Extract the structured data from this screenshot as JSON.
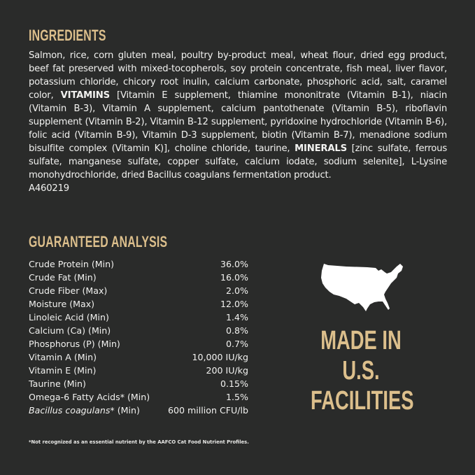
{
  "ingredients": {
    "title": "INGREDIENTS",
    "parts": [
      {
        "text": "Salmon, rice, corn gluten meal, poultry by-product meal, wheat flour, dried egg product, beef fat preserved with mixed-tocopherols, soy protein concentrate, fish meal, liver flavor, potassium chloride, chicory root inulin, calcium carbonate, phosphoric acid, salt, caramel color, ",
        "bold": false
      },
      {
        "text": "VITAMINS",
        "bold": true
      },
      {
        "text": " [Vitamin E supplement, thiamine mononitrate (Vitamin B-1), niacin (Vitamin B-3), Vitamin A supplement, calcium pantothenate (Vitamin B-5), riboflavin supplement (Vitamin B-2), Vitamin B-12 supplement, pyridoxine hydrochloride (Vitamin B-6), folic acid (Vitamin B-9), Vitamin D-3 supplement, biotin (Vitamin B-7), menadione sodium bisulfite complex (Vitamin K)], choline chloride, taurine, ",
        "bold": false
      },
      {
        "text": "MINERALS",
        "bold": true
      },
      {
        "text": " [zinc sulfate, ferrous sulfate, manganese sulfate, copper sulfate, calcium iodate, sodium selenite], L-Lysine monohydrochloride, dried Bacillus coagulans fermentation product.",
        "bold": false
      }
    ],
    "code": "A460219"
  },
  "analysis": {
    "title": "GUARANTEED ANALYSIS",
    "rows": [
      {
        "label": "Crude Protein (Min)",
        "value": "36.0%"
      },
      {
        "label": "Crude Fat (Min)",
        "value": "16.0%"
      },
      {
        "label": "Crude Fiber (Max)",
        "value": "2.0%"
      },
      {
        "label": "Moisture (Max)",
        "value": "12.0%"
      },
      {
        "label": "Linoleic Acid (Min)",
        "value": "1.4%"
      },
      {
        "label": "Calcium (Ca) (Min)",
        "value": "0.8%"
      },
      {
        "label": "Phosphorus (P) (Min)",
        "value": "0.7%"
      },
      {
        "label": "Vitamin A (Min)",
        "value": "10,000 IU/kg"
      },
      {
        "label": "Vitamin E (Min)",
        "value": "200 IU/kg"
      },
      {
        "label": "Taurine (Min)",
        "value": "0.15%"
      },
      {
        "label": "Omega-6 Fatty Acids* (Min)",
        "value": "1.5%"
      }
    ],
    "last_row": {
      "label_italic": "Bacillus coagulans",
      "label_rest": "* (Min)",
      "value": "600 million CFU/lb"
    }
  },
  "badge": {
    "icon": "usa-map-icon",
    "lines": [
      "MADE IN",
      "U.S.",
      "FACILITIES"
    ]
  },
  "footnote": "*Not recognized as an essential nutrient by the AAFCO Cat Food Nutrient Profiles.",
  "colors": {
    "background": "#2a2b2a",
    "accent": "#dcbf8c",
    "text": "#f2f2f0"
  }
}
